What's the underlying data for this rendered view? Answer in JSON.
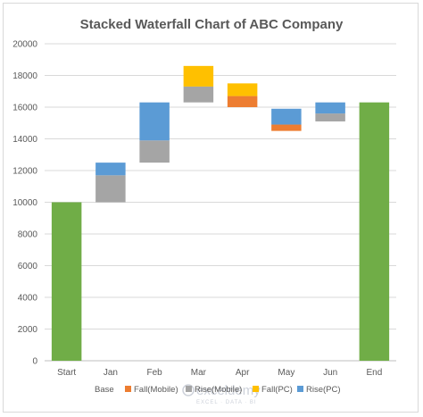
{
  "chart_data": {
    "type": "bar",
    "stacked": true,
    "title": "Stacked Waterfall Chart of ABC Company",
    "categories": [
      "Start",
      "Jan",
      "Feb",
      "Mar",
      "Apr",
      "May",
      "Jun",
      "End"
    ],
    "ylim": [
      0,
      20000
    ],
    "yticks": [
      0,
      2000,
      4000,
      6000,
      8000,
      10000,
      12000,
      14000,
      16000,
      18000,
      20000
    ],
    "grid": true,
    "legend_position": "bottom",
    "series": [
      {
        "name": "Base",
        "color": "#70ad47",
        "values": [
          10000,
          0,
          0,
          0,
          0,
          0,
          0,
          16300
        ],
        "note_hidden_parts": [
          0,
          10000,
          12500,
          16300,
          16000,
          14500,
          15100,
          0
        ]
      },
      {
        "name": "Fall(Mobile)",
        "color": "#ed7d31",
        "values": [
          0,
          0,
          0,
          0,
          700,
          400,
          0,
          0
        ]
      },
      {
        "name": "Rise(Mobile)",
        "color": "#a5a5a5",
        "values": [
          0,
          1700,
          1400,
          1000,
          0,
          0,
          500,
          0
        ]
      },
      {
        "name": "Fall(PC)",
        "color": "#ffc000",
        "values": [
          0,
          0,
          0,
          1300,
          800,
          0,
          0,
          0
        ]
      },
      {
        "name": "Rise(PC)",
        "color": "#5b9bd5",
        "values": [
          0,
          800,
          2400,
          0,
          0,
          1000,
          700,
          0
        ]
      }
    ]
  },
  "watermark": {
    "text": "exceldemy",
    "subtitle": "EXCEL · DATA · BI"
  }
}
